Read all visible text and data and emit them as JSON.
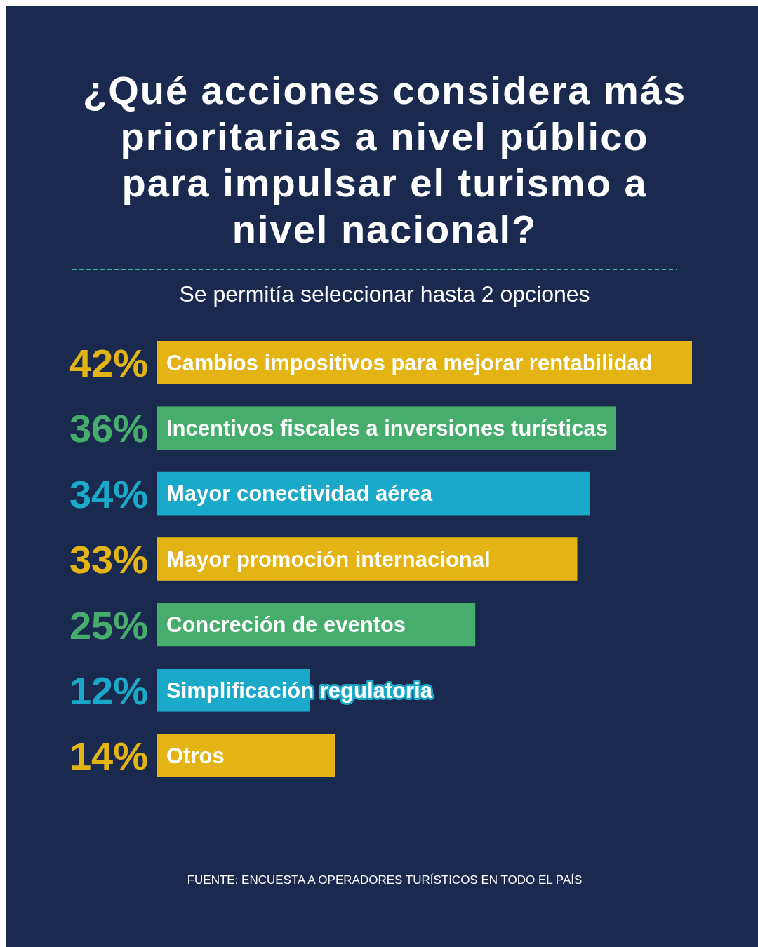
{
  "chart_data": {
    "type": "bar",
    "orientation": "horizontal",
    "title": "¿Qué acciones considera más prioritarias a nivel público para impulsar el turismo a nivel nacional?",
    "subtitle": "Se permitía seleccionar hasta 2 opciones",
    "categories": [
      "Cambios impositivos para mejorar rentabilidad",
      "Incentivos fiscales a inversiones turísticas",
      "Mayor conectividad aérea",
      "Mayor promoción internacional",
      "Concreción de eventos",
      "Simplificación regulatoria",
      "Otros"
    ],
    "values": [
      42,
      36,
      34,
      33,
      25,
      12,
      14
    ],
    "value_labels": [
      "42%",
      "36%",
      "34%",
      "33%",
      "25%",
      "12%",
      "14%"
    ],
    "colors": [
      "#e3b414",
      "#46ad6c",
      "#1ba9c9",
      "#e3b414",
      "#46ad6c",
      "#1ba9c9",
      "#e3b414"
    ],
    "annotations": [
      "FUENTE: ENCUESTA A OPERADORES TURÍSTICOS EN TODO EL PAÍS"
    ]
  }
}
